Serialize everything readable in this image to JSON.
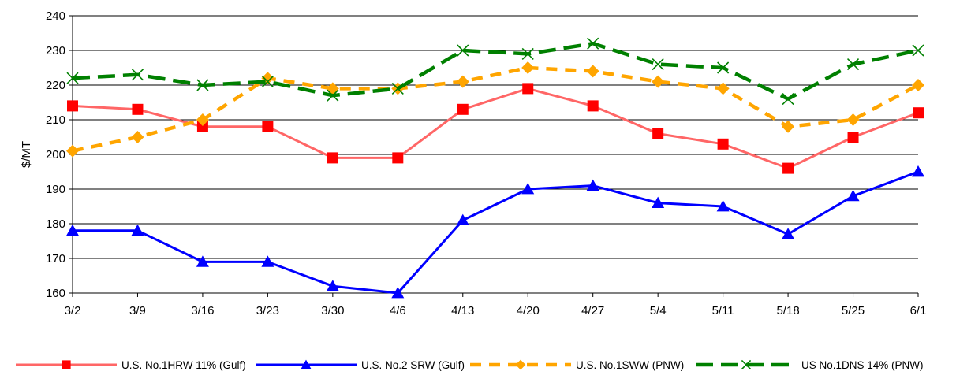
{
  "chart_data": {
    "type": "line",
    "title": "",
    "xlabel": "",
    "ylabel": "$/MT",
    "ylim": [
      160,
      240
    ],
    "yticks": [
      160,
      170,
      180,
      190,
      200,
      210,
      220,
      230,
      240
    ],
    "grid": "horizontal",
    "legend_position": "bottom",
    "categories": [
      "3/2",
      "3/9",
      "3/16",
      "3/23",
      "3/30",
      "4/6",
      "4/13",
      "4/20",
      "4/27",
      "5/4",
      "5/11",
      "5/18",
      "5/25",
      "6/1"
    ],
    "series": [
      {
        "name": "U.S. No.1HRW 11% (Gulf)",
        "color": "#ff0000",
        "line": "#ff6666",
        "dash": "solid",
        "marker": "square",
        "values": [
          214,
          213,
          208,
          208,
          199,
          199,
          213,
          219,
          214,
          206,
          203,
          196,
          205,
          212
        ]
      },
      {
        "name": "U.S. No.2 SRW (Gulf)",
        "color": "#0000ff",
        "line": "#0000ff",
        "dash": "solid",
        "marker": "triangle",
        "values": [
          178,
          178,
          169,
          169,
          162,
          160,
          181,
          190,
          191,
          186,
          185,
          177,
          188,
          195
        ]
      },
      {
        "name": "U.S. No.1SWW (PNW)",
        "color": "#ffa500",
        "line": "#ffa500",
        "dash": "dashed",
        "marker": "diamond",
        "values": [
          201,
          205,
          210,
          222,
          219,
          219,
          221,
          225,
          224,
          221,
          219,
          208,
          210,
          220
        ]
      },
      {
        "name": "US No.1DNS 14% (PNW)",
        "color": "#008000",
        "line": "#008000",
        "dash": "longdash",
        "marker": "x",
        "values": [
          222,
          223,
          220,
          221,
          217,
          219,
          230,
          229,
          232,
          226,
          225,
          216,
          226,
          230
        ]
      }
    ]
  }
}
